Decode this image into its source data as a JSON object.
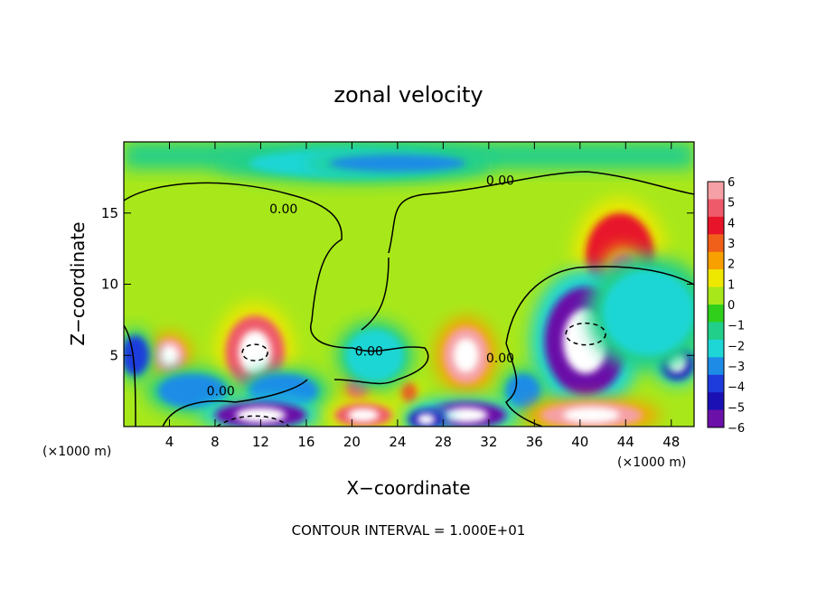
{
  "chart_data": {
    "type": "heatmap",
    "title": "zonal velocity",
    "xlabel": "X−coordinate",
    "ylabel": "Z−coordinate",
    "x_unit_left": "(×1000 m)",
    "x_unit_right": "(×1000 m)",
    "footer": "CONTOUR INTERVAL = 1.000E+01",
    "xlim": [
      0,
      50
    ],
    "ylim": [
      0,
      20
    ],
    "x_ticks": [
      4,
      8,
      12,
      16,
      20,
      24,
      28,
      32,
      36,
      40,
      44,
      48
    ],
    "x_tick_labels": [
      "4",
      "8",
      "12",
      "16",
      "20",
      "24",
      "28",
      "32",
      "36",
      "40",
      "44",
      "48"
    ],
    "y_ticks": [
      5,
      10,
      15
    ],
    "y_tick_labels": [
      "5",
      "10",
      "15"
    ],
    "colorbar": {
      "min": -6,
      "max": 6,
      "ticks": [
        6,
        5,
        4,
        3,
        2,
        1,
        0,
        -1,
        -2,
        -3,
        -4,
        -5,
        -6
      ],
      "tick_labels": [
        "6",
        "5",
        "4",
        "3",
        "2",
        "1",
        "0",
        "−1",
        "−2",
        "−3",
        "−4",
        "−5",
        "−6"
      ],
      "colors": [
        "#f5a0a6",
        "#ee5a6a",
        "#e8142a",
        "#f0601a",
        "#f7a000",
        "#eee800",
        "#a8e81a",
        "#2fcf1c",
        "#21cf8a",
        "#1ed6d6",
        "#1e8ce6",
        "#1e3cdc",
        "#1a10b4",
        "#6b10a8"
      ]
    },
    "contour_labels": [
      {
        "text": "0.00",
        "x": 14,
        "y": 15
      },
      {
        "text": "0.00",
        "x": 33,
        "y": 17
      },
      {
        "text": "0.00",
        "x": 21.5,
        "y": 5
      },
      {
        "text": "0.00",
        "x": 33,
        "y": 4.5
      },
      {
        "text": "0.00",
        "x": 8.5,
        "y": 2.2
      }
    ],
    "blobs": [
      {
        "x": 11.5,
        "y": 5.2,
        "rx": 2.6,
        "ry": 2.6,
        "value": 4.5
      },
      {
        "x": 4,
        "y": 5,
        "rx": 1.4,
        "ry": 1.2,
        "value": 5.5
      },
      {
        "x": 30,
        "y": 5,
        "rx": 2.0,
        "ry": 2.0,
        "value": 5.5
      },
      {
        "x": 20.5,
        "y": 2.7,
        "rx": 0.9,
        "ry": 0.8,
        "value": 5
      },
      {
        "x": 25,
        "y": 2.4,
        "rx": 0.7,
        "ry": 0.7,
        "value": 3
      },
      {
        "x": 43.5,
        "y": 12,
        "rx": 3.0,
        "ry": 3.0,
        "value": 3.5
      },
      {
        "x": 43.8,
        "y": 11.2,
        "rx": 1.2,
        "ry": 1.0,
        "value": 4.5
      },
      {
        "x": 40.5,
        "y": 6,
        "rx": 3.6,
        "ry": 3.8,
        "value": -5.5
      },
      {
        "x": 48.5,
        "y": 4.5,
        "rx": 1.5,
        "ry": 1.2,
        "value": -5
      },
      {
        "x": 1,
        "y": 5,
        "rx": 1.2,
        "ry": 1.4,
        "value": -3.5
      },
      {
        "x": 20,
        "y": 18.5,
        "rx": 9,
        "ry": 1.0,
        "value": -2
      },
      {
        "x": 24,
        "y": 18.5,
        "rx": 6,
        "ry": 0.6,
        "value": -3
      },
      {
        "x": 22,
        "y": 5,
        "rx": 2.5,
        "ry": 1.8,
        "value": -2
      },
      {
        "x": 14,
        "y": 2.5,
        "rx": 3,
        "ry": 1.2,
        "value": -3
      },
      {
        "x": 6,
        "y": 2.5,
        "rx": 3,
        "ry": 1.2,
        "value": -3
      },
      {
        "x": 46,
        "y": 8,
        "rx": 4,
        "ry": 3,
        "value": -2
      },
      {
        "x": 35,
        "y": 2.5,
        "rx": 1.5,
        "ry": 1.2,
        "value": -3
      },
      {
        "x": 30,
        "y": 0.8,
        "rx": 3.5,
        "ry": 0.9,
        "value": -5.5
      },
      {
        "x": 12,
        "y": 0.8,
        "rx": 4,
        "ry": 0.9,
        "value": -5.5
      },
      {
        "x": 41,
        "y": 0.8,
        "rx": 4.5,
        "ry": 0.9,
        "value": 5.5
      },
      {
        "x": 21,
        "y": 0.8,
        "rx": 2.5,
        "ry": 0.8,
        "value": 4.5
      },
      {
        "x": 26.5,
        "y": 0.5,
        "rx": 1.5,
        "ry": 0.7,
        "value": -5
      }
    ]
  }
}
